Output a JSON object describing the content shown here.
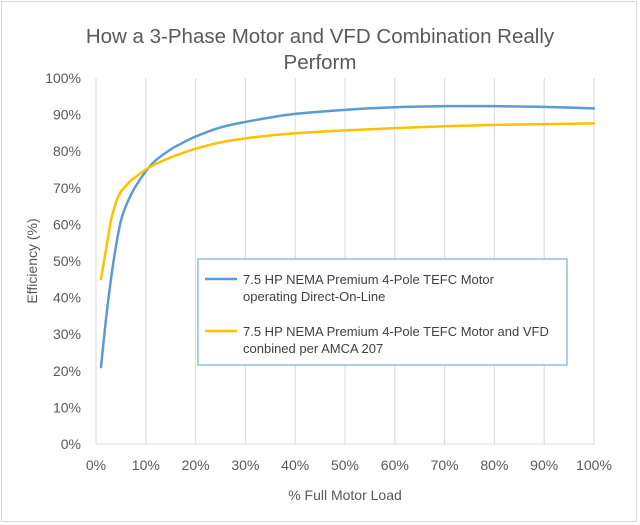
{
  "chart_data": {
    "type": "line",
    "title": [
      "How a 3-Phase Motor and VFD Combination Really",
      "Perform"
    ],
    "xlabel": "% Full Motor Load",
    "ylabel": "Efficiency (%)",
    "xlim": [
      0,
      100
    ],
    "ylim": [
      0,
      100
    ],
    "xticks": [
      0,
      10,
      20,
      30,
      40,
      50,
      60,
      70,
      80,
      90,
      100
    ],
    "yticks": [
      0,
      10,
      20,
      30,
      40,
      50,
      60,
      70,
      80,
      90,
      100
    ],
    "xtick_labels": [
      "0%",
      "10%",
      "20%",
      "30%",
      "40%",
      "50%",
      "60%",
      "70%",
      "80%",
      "90%",
      "100%"
    ],
    "ytick_labels": [
      "0%",
      "10%",
      "20%",
      "30%",
      "40%",
      "50%",
      "60%",
      "70%",
      "80%",
      "90%",
      "100%"
    ],
    "grid": "vertical",
    "legend": "inside-center",
    "series": [
      {
        "name": [
          "7.5 HP NEMA Premium 4-Pole TEFC Motor",
          "operating Direct-On-Line"
        ],
        "color": "#5b9bd5",
        "x": [
          1,
          2,
          3,
          4,
          5,
          6,
          7,
          8,
          10,
          12,
          15,
          17,
          20,
          25,
          30,
          35,
          40,
          50,
          60,
          70,
          80,
          90,
          100
        ],
        "y": [
          21,
          34,
          45,
          54,
          61,
          65,
          68,
          70.5,
          74.5,
          77.5,
          80.5,
          82,
          84,
          86.5,
          88,
          89.2,
          90.2,
          91.3,
          92,
          92.3,
          92.3,
          92.1,
          91.7
        ]
      },
      {
        "name": [
          "7.5 HP NEMA Premium 4-Pole TEFC Motor and VFD",
          "conbined per AMCA 207"
        ],
        "color": "#ffc000",
        "x": [
          1,
          2,
          3,
          4,
          5,
          6,
          7,
          8,
          10,
          12,
          15,
          17,
          20,
          25,
          30,
          35,
          40,
          50,
          60,
          70,
          80,
          90,
          100
        ],
        "y": [
          45,
          53,
          61,
          66,
          69,
          70.5,
          72,
          73,
          75,
          76.5,
          78.3,
          79.3,
          80.7,
          82.4,
          83.5,
          84.3,
          84.9,
          85.7,
          86.3,
          86.8,
          87.2,
          87.4,
          87.6
        ]
      }
    ]
  }
}
